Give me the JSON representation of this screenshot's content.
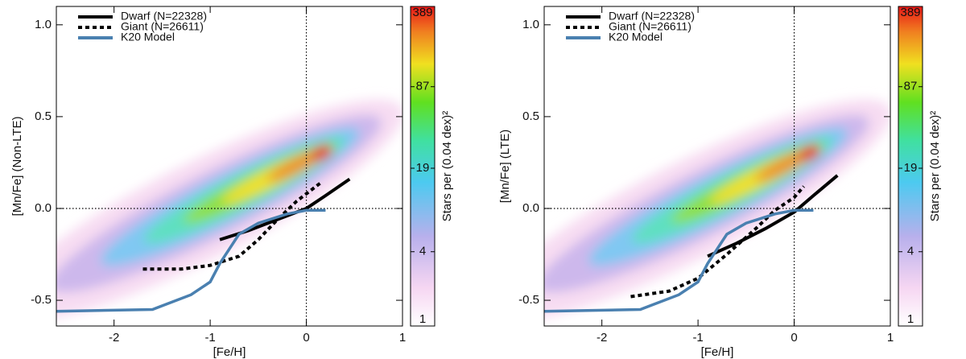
{
  "chart_data": [
    {
      "type": "line",
      "xlabel": "[Fe/H]",
      "ylabel": "[Mn/Fe] (Non-LTE)",
      "xlim": [
        -2.6,
        1
      ],
      "ylim": [
        -0.64,
        1.1
      ],
      "xticks": [
        -2,
        -1,
        0,
        1
      ],
      "yticks": [
        -0.5,
        {
          "value": 0,
          "label": "0.0"
        },
        0.5,
        {
          "value": 1,
          "label": "1.0"
        }
      ],
      "hlines": [
        0
      ],
      "vlines": [
        0
      ],
      "legend": "upper left",
      "series": [
        {
          "name": "Dwarf (N=22328)",
          "color": "#000000",
          "linestyle": "solid",
          "x": [
            -0.9,
            -0.6,
            -0.3,
            0,
            0.2,
            0.45
          ],
          "values": [
            -0.17,
            -0.12,
            -0.06,
            0.0,
            0.07,
            0.16
          ]
        },
        {
          "name": "Giant  (N=26611)",
          "color": "#000000",
          "linestyle": "dotted",
          "x": [
            -1.7,
            -1.3,
            -1.0,
            -0.7,
            -0.5,
            -0.3,
            -0.1,
            0.15
          ],
          "values": [
            -0.33,
            -0.33,
            -0.31,
            -0.26,
            -0.17,
            -0.06,
            0.04,
            0.14
          ]
        },
        {
          "name": "K20 Model",
          "color": "#4a80b0",
          "linestyle": "solid",
          "x": [
            -2.6,
            -1.6,
            -1.2,
            -1.0,
            -0.9,
            -0.7,
            -0.5,
            -0.2,
            0,
            0.2
          ],
          "values": [
            -0.56,
            -0.55,
            -0.47,
            -0.4,
            -0.3,
            -0.14,
            -0.08,
            -0.03,
            -0.01,
            -0.01
          ]
        }
      ],
      "colorbar": {
        "label": "Stars per (0.04 dex)²",
        "lim": [
          1,
          389
        ],
        "log": true,
        "ticks": [
          1,
          4,
          19,
          87,
          389
        ]
      }
    },
    {
      "type": "line",
      "xlabel": "[Fe/H]",
      "ylabel": "[Mn/Fe] (LTE)",
      "xlim": [
        -2.6,
        1
      ],
      "ylim": [
        -0.64,
        1.1
      ],
      "xticks": [
        -2,
        -1,
        0,
        1
      ],
      "yticks": [
        -0.5,
        {
          "value": 0,
          "label": "0.0"
        },
        0.5,
        {
          "value": 1,
          "label": "1.0"
        }
      ],
      "hlines": [
        0
      ],
      "vlines": [
        0
      ],
      "legend": "upper left",
      "series": [
        {
          "name": "Dwarf (N=22328)",
          "color": "#000000",
          "linestyle": "solid",
          "x": [
            -0.9,
            -0.6,
            -0.3,
            0,
            0.2,
            0.45
          ],
          "values": [
            -0.26,
            -0.19,
            -0.11,
            -0.02,
            0.07,
            0.18
          ]
        },
        {
          "name": "Giant  (N=26611)",
          "color": "#000000",
          "linestyle": "dotted",
          "x": [
            -1.7,
            -1.3,
            -1.0,
            -0.7,
            -0.4,
            -0.2,
            0,
            0.1
          ],
          "values": [
            -0.48,
            -0.45,
            -0.38,
            -0.25,
            -0.11,
            -0.01,
            0.06,
            0.12
          ]
        },
        {
          "name": "K20 Model",
          "color": "#4a80b0",
          "linestyle": "solid",
          "x": [
            -2.6,
            -1.6,
            -1.2,
            -1.0,
            -0.9,
            -0.7,
            -0.5,
            -0.2,
            0,
            0.2
          ],
          "values": [
            -0.56,
            -0.55,
            -0.47,
            -0.4,
            -0.3,
            -0.14,
            -0.08,
            -0.03,
            -0.01,
            -0.01
          ]
        }
      ],
      "colorbar": {
        "label": "Stars per (0.04 dex)²",
        "lim": [
          1,
          389
        ],
        "log": true,
        "ticks": [
          1,
          4,
          19,
          87,
          389
        ]
      }
    }
  ]
}
